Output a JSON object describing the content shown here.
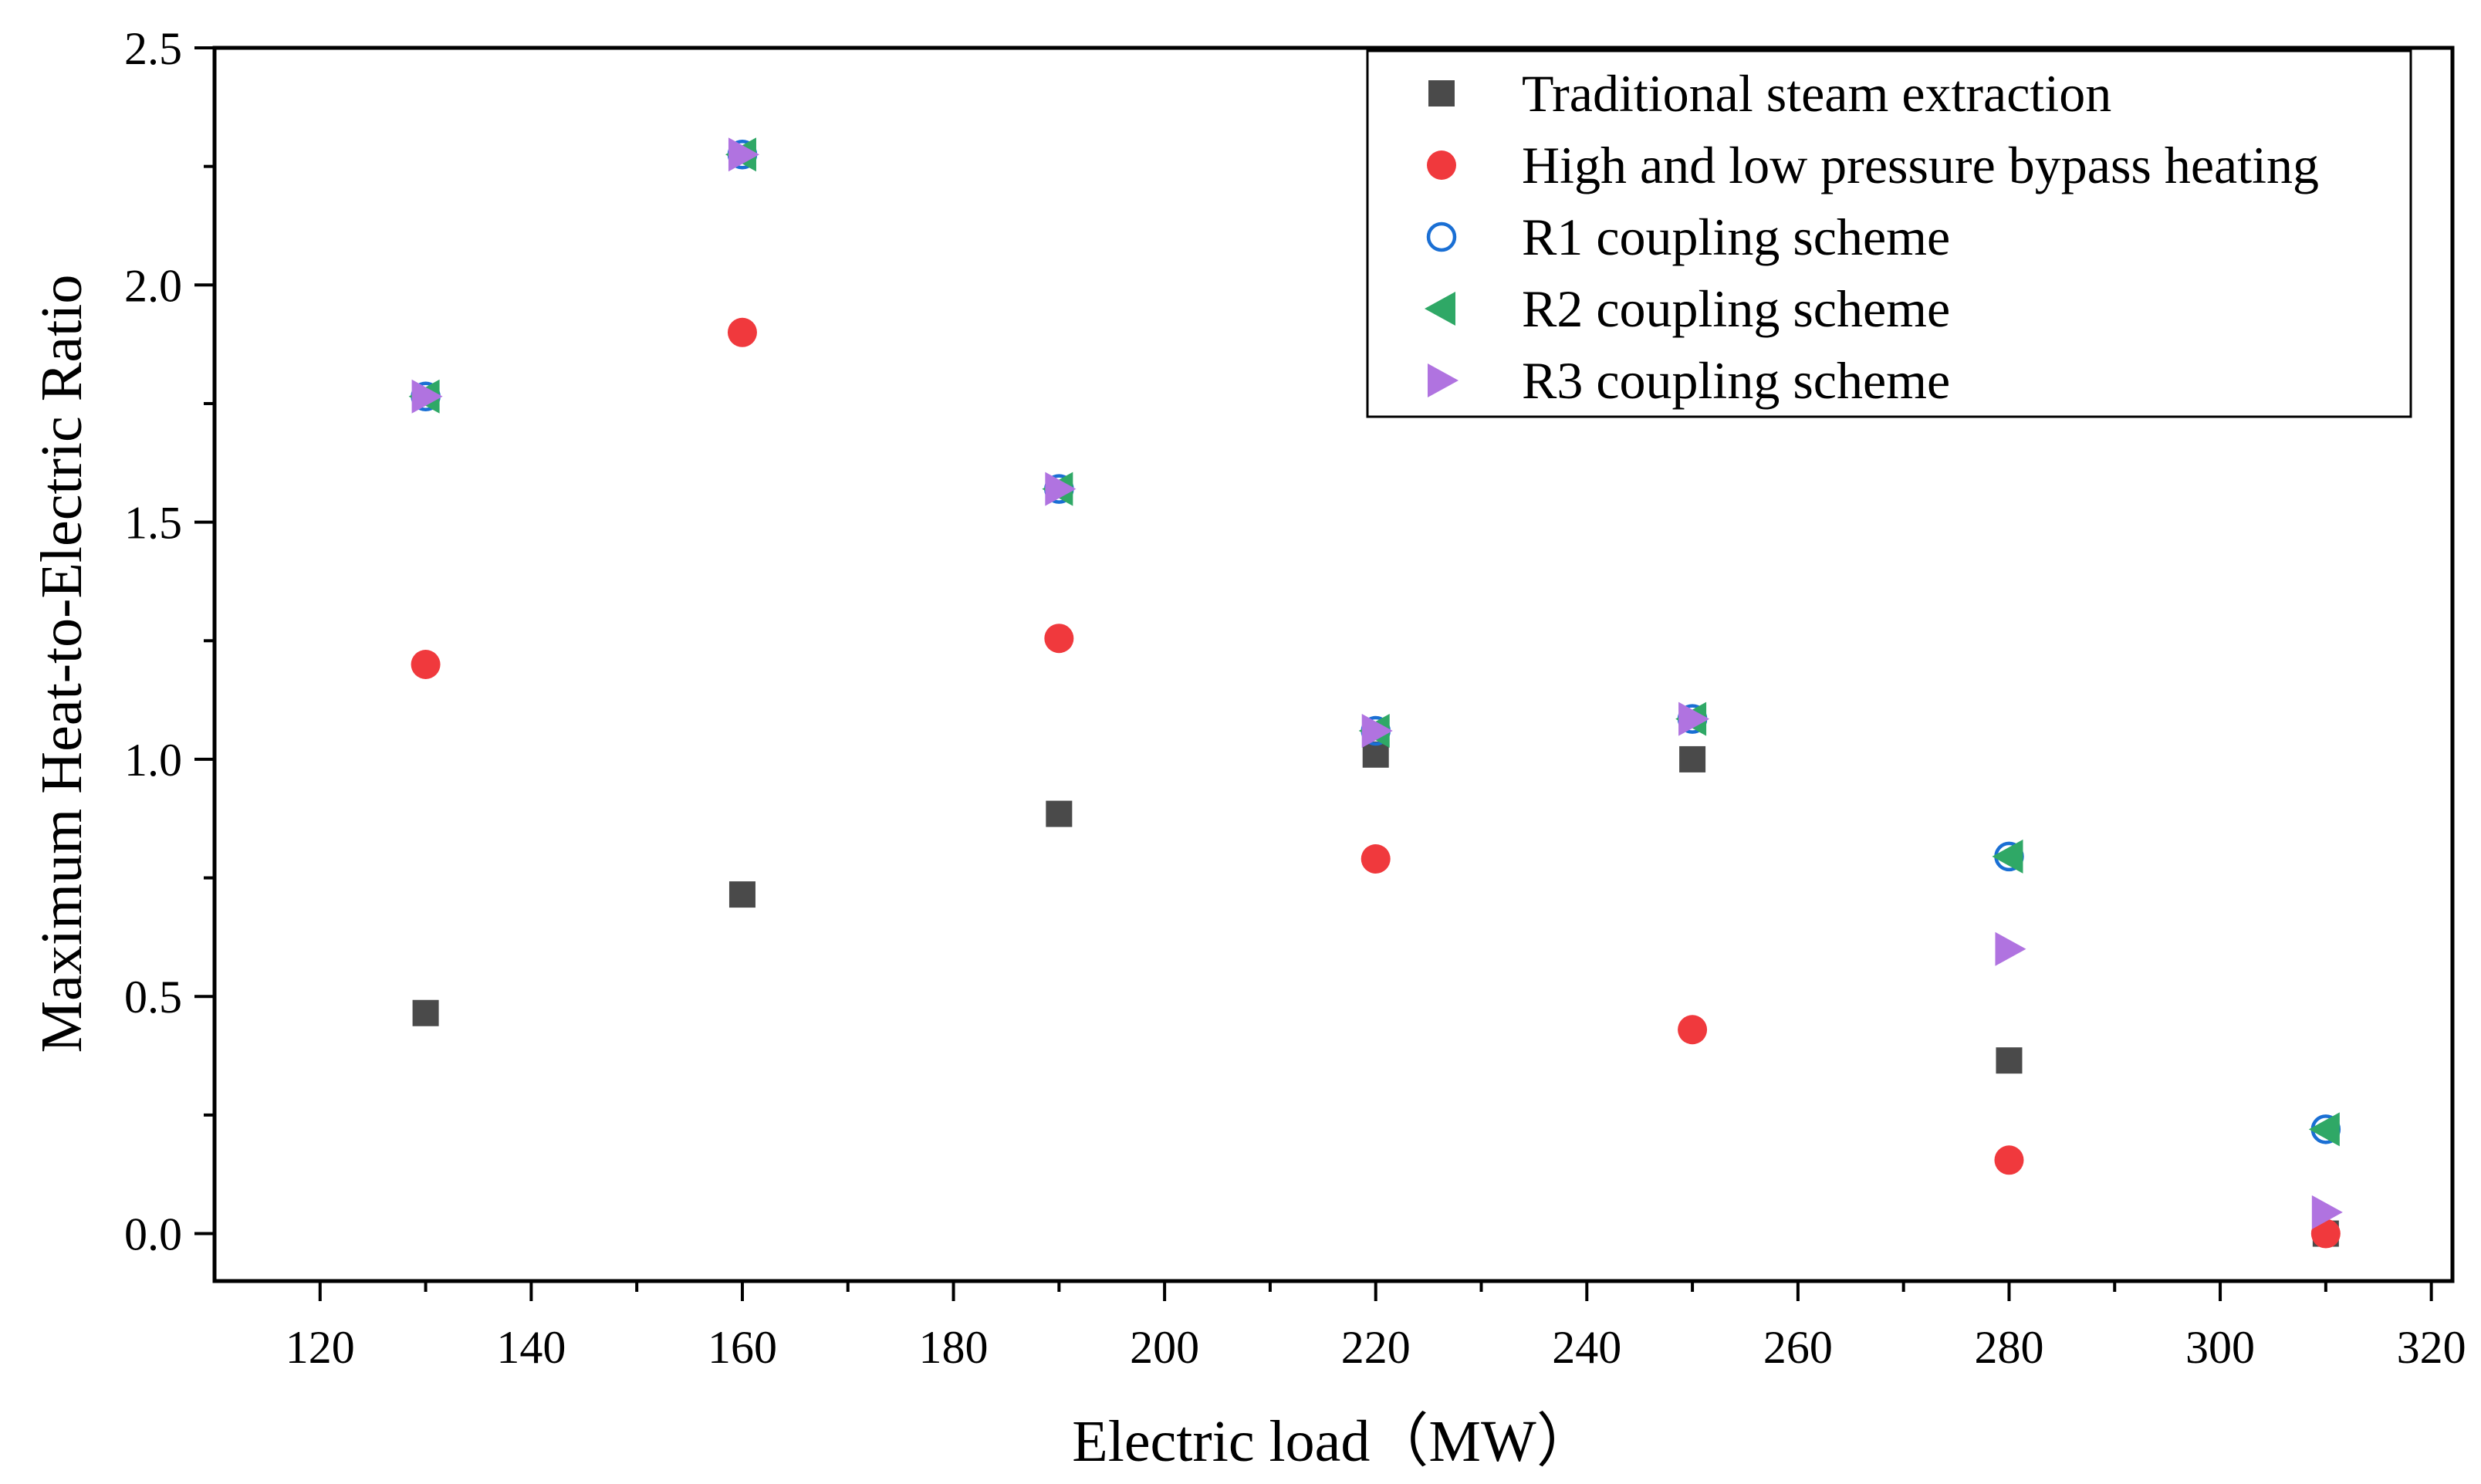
{
  "chart_data": {
    "type": "scatter",
    "title": "",
    "xlabel": "Electric load（MW）",
    "ylabel": "Maximum Heat-to-Electric Ratio",
    "xlim": [
      110,
      322
    ],
    "ylim": [
      -0.1,
      2.5
    ],
    "xticks": [
      120,
      140,
      160,
      180,
      200,
      220,
      240,
      260,
      280,
      300,
      320
    ],
    "xtick_labels": [
      "120",
      "140",
      "160",
      "180",
      "200",
      "220",
      "240",
      "260",
      "280",
      "300",
      "320"
    ],
    "yticks": [
      0.0,
      0.5,
      1.0,
      1.5,
      2.0,
      2.5
    ],
    "ytick_labels": [
      "0.0",
      "0.5",
      "1.0",
      "1.5",
      "2.0",
      "2.5"
    ],
    "legend_position": "top-right",
    "series": [
      {
        "name": "Traditional steam extraction",
        "marker": "square",
        "color": "#4a4a4a",
        "x": [
          130,
          160,
          190,
          220,
          250,
          280,
          310
        ],
        "y": [
          0.465,
          0.715,
          0.885,
          1.01,
          1.0,
          0.365,
          0.0
        ]
      },
      {
        "name": "High and low pressure bypass heating",
        "marker": "circle",
        "color": "#f0393d",
        "x": [
          130,
          160,
          190,
          220,
          250,
          280,
          310
        ],
        "y": [
          1.2,
          1.9,
          1.255,
          0.79,
          0.43,
          0.155,
          0.0
        ]
      },
      {
        "name": "R1 coupling scheme",
        "marker": "circle-open",
        "color": "#1a6fd4",
        "x": [
          130,
          160,
          190,
          220,
          250,
          280,
          310
        ],
        "y": [
          1.765,
          2.275,
          1.57,
          1.06,
          1.085,
          0.795,
          0.22
        ]
      },
      {
        "name": "R2 coupling scheme",
        "marker": "triangle-left",
        "color": "#2fa866",
        "x": [
          130,
          160,
          190,
          220,
          250,
          280,
          310
        ],
        "y": [
          1.765,
          2.275,
          1.57,
          1.06,
          1.085,
          0.795,
          0.22
        ]
      },
      {
        "name": "R3 coupling scheme",
        "marker": "triangle-right",
        "color": "#b073e0",
        "x": [
          130,
          160,
          190,
          220,
          250,
          280,
          310
        ],
        "y": [
          1.765,
          2.275,
          1.57,
          1.06,
          1.085,
          0.6,
          0.045
        ]
      }
    ]
  }
}
